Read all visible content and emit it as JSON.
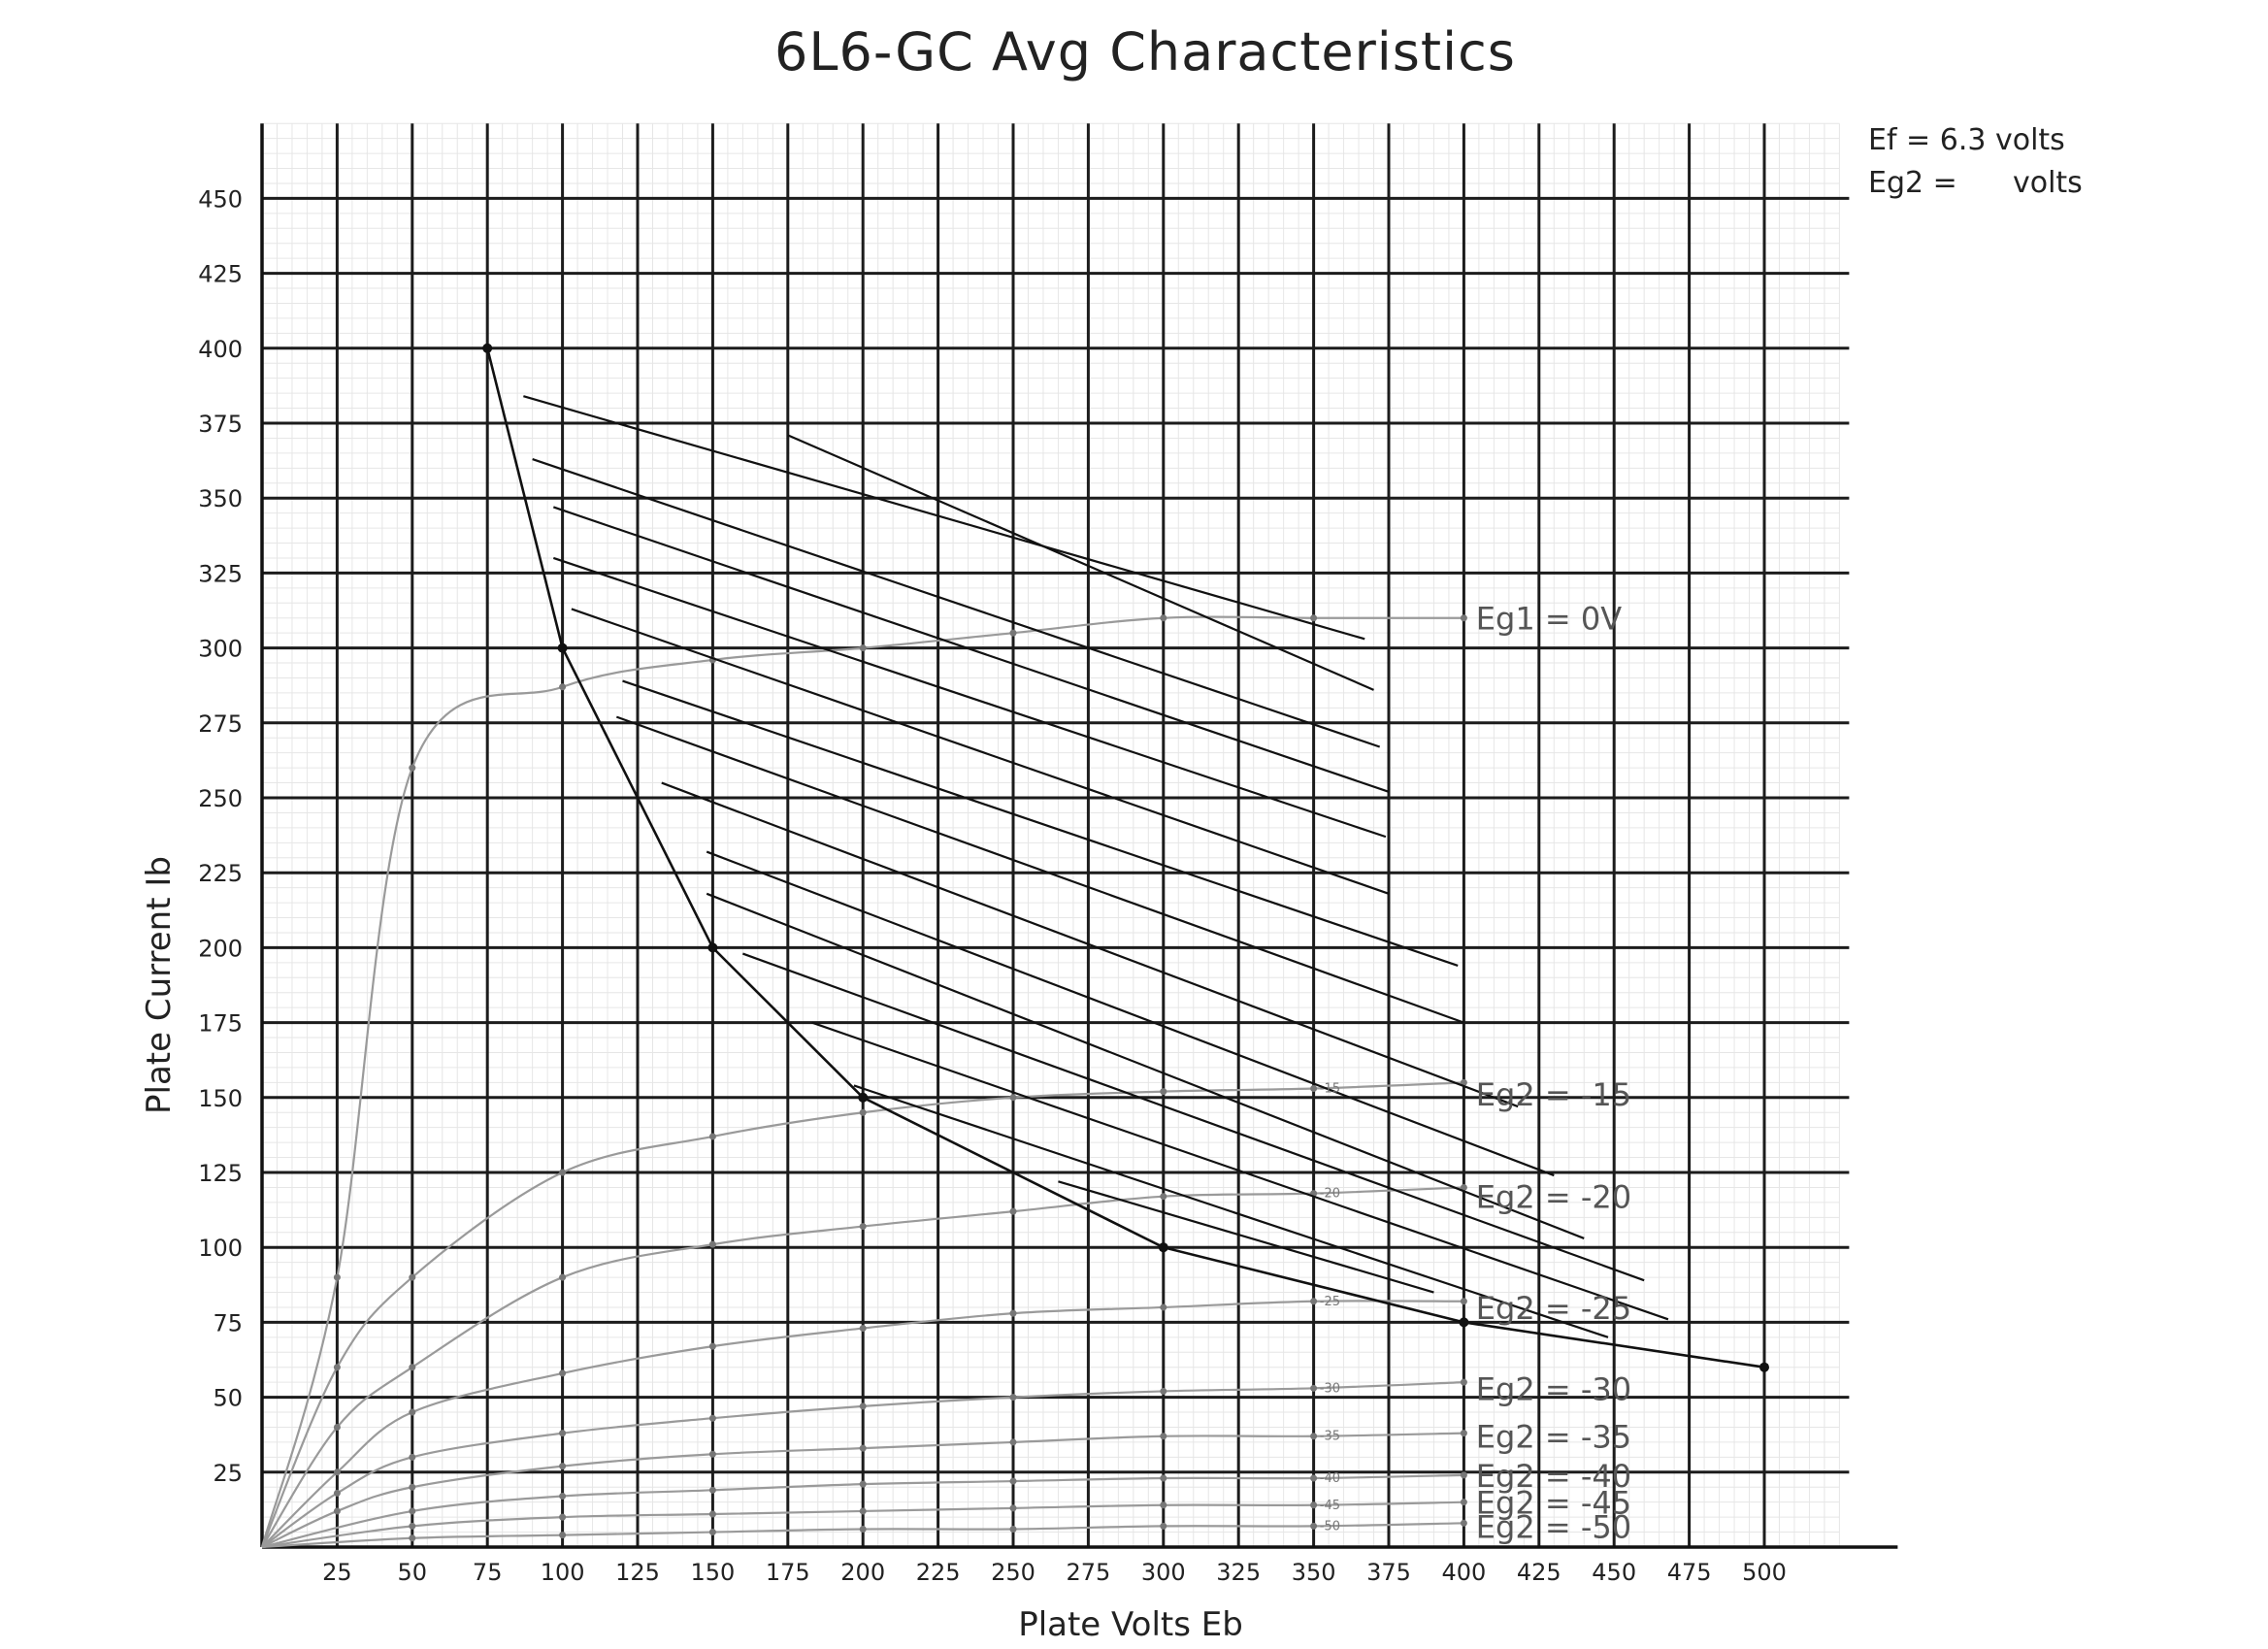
{
  "chart_data": {
    "type": "line",
    "title": "6L6-GC Avg Characteristics",
    "xlabel": "Plate Volts Eb",
    "ylabel": "Plate Current Ib",
    "xlim": [
      0,
      525
    ],
    "ylim": [
      0,
      475
    ],
    "x_ticks": [
      25,
      50,
      75,
      100,
      125,
      150,
      175,
      200,
      225,
      250,
      275,
      300,
      325,
      350,
      375,
      400,
      425,
      450,
      475,
      500
    ],
    "y_ticks": [
      25,
      50,
      75,
      100,
      125,
      150,
      175,
      200,
      225,
      250,
      275,
      300,
      325,
      350,
      375,
      400,
      425,
      450
    ],
    "x_tick_labels": [
      "25",
      "50",
      "75",
      "100",
      "125",
      "150",
      "175",
      "200",
      "225",
      "250",
      "275",
      "300",
      "325",
      "350",
      "375",
      "400",
      "425",
      "450",
      "475",
      "500"
    ],
    "y_tick_labels": [
      "25",
      "50",
      "75",
      "100",
      "125",
      "150",
      "175",
      "200",
      "225",
      "250",
      "275",
      "300",
      "325",
      "350",
      "375",
      "400",
      "425",
      "450"
    ],
    "grid": true,
    "annotations": {
      "filament": "Ef = 6.3 volts",
      "screen": "Eg2 =      volts"
    },
    "series": [
      {
        "label": "Eg1 = 0V",
        "points": [
          [
            0,
            0
          ],
          [
            25,
            90
          ],
          [
            50,
            260
          ],
          [
            100,
            287
          ],
          [
            150,
            296
          ],
          [
            200,
            300
          ],
          [
            250,
            305
          ],
          [
            300,
            310
          ],
          [
            350,
            310
          ],
          [
            400,
            310
          ]
        ]
      },
      {
        "label": "Eg2 = -15",
        "points": [
          [
            0,
            0
          ],
          [
            25,
            60
          ],
          [
            50,
            90
          ],
          [
            100,
            125
          ],
          [
            150,
            137
          ],
          [
            200,
            145
          ],
          [
            250,
            150
          ],
          [
            300,
            152
          ],
          [
            350,
            153
          ],
          [
            400,
            155
          ]
        ]
      },
      {
        "label": "Eg2 = -20",
        "points": [
          [
            0,
            0
          ],
          [
            25,
            40
          ],
          [
            50,
            60
          ],
          [
            100,
            90
          ],
          [
            150,
            101
          ],
          [
            200,
            107
          ],
          [
            250,
            112
          ],
          [
            300,
            117
          ],
          [
            350,
            118
          ],
          [
            400,
            120
          ]
        ]
      },
      {
        "label": "Eg2 = -25",
        "points": [
          [
            0,
            0
          ],
          [
            25,
            25
          ],
          [
            50,
            45
          ],
          [
            100,
            58
          ],
          [
            150,
            67
          ],
          [
            200,
            73
          ],
          [
            250,
            78
          ],
          [
            300,
            80
          ],
          [
            350,
            82
          ],
          [
            400,
            82
          ]
        ]
      },
      {
        "label": "Eg2 = -30",
        "points": [
          [
            0,
            0
          ],
          [
            25,
            18
          ],
          [
            50,
            30
          ],
          [
            100,
            38
          ],
          [
            150,
            43
          ],
          [
            200,
            47
          ],
          [
            250,
            50
          ],
          [
            300,
            52
          ],
          [
            350,
            53
          ],
          [
            400,
            55
          ]
        ]
      },
      {
        "label": "Eg2 = -35",
        "points": [
          [
            0,
            0
          ],
          [
            25,
            12
          ],
          [
            50,
            20
          ],
          [
            100,
            27
          ],
          [
            150,
            31
          ],
          [
            200,
            33
          ],
          [
            250,
            35
          ],
          [
            300,
            37
          ],
          [
            350,
            37
          ],
          [
            400,
            38
          ]
        ]
      },
      {
        "label": "Eg2 = -40",
        "points": [
          [
            0,
            0
          ],
          [
            50,
            12
          ],
          [
            100,
            17
          ],
          [
            150,
            19
          ],
          [
            200,
            21
          ],
          [
            250,
            22
          ],
          [
            300,
            23
          ],
          [
            350,
            23
          ],
          [
            400,
            24
          ]
        ]
      },
      {
        "label": "Eg2 = -45",
        "points": [
          [
            0,
            0
          ],
          [
            50,
            7
          ],
          [
            100,
            10
          ],
          [
            150,
            11
          ],
          [
            200,
            12
          ],
          [
            250,
            13
          ],
          [
            300,
            14
          ],
          [
            350,
            14
          ],
          [
            400,
            15
          ]
        ]
      },
      {
        "label": "Eg2 = -50",
        "points": [
          [
            0,
            0
          ],
          [
            50,
            3
          ],
          [
            100,
            4
          ],
          [
            150,
            5
          ],
          [
            200,
            6
          ],
          [
            250,
            6
          ],
          [
            300,
            7
          ],
          [
            350,
            7
          ],
          [
            400,
            8
          ]
        ]
      }
    ],
    "max_dissipation_curve": [
      [
        75,
        400
      ],
      [
        100,
        300
      ],
      [
        150,
        200
      ],
      [
        200,
        150
      ],
      [
        300,
        100
      ],
      [
        400,
        75
      ],
      [
        500,
        60
      ]
    ],
    "load_lines": [
      [
        [
          87,
          384
        ],
        [
          367,
          303
        ]
      ],
      [
        [
          175,
          371
        ],
        [
          370,
          286
        ]
      ],
      [
        [
          90,
          363
        ],
        [
          372,
          267
        ]
      ],
      [
        [
          97,
          347
        ],
        [
          375,
          252
        ]
      ],
      [
        [
          97,
          330
        ],
        [
          374,
          237
        ]
      ],
      [
        [
          103,
          313
        ],
        [
          375,
          218
        ]
      ],
      [
        [
          120,
          289
        ],
        [
          398,
          194
        ]
      ],
      [
        [
          118,
          277
        ],
        [
          400,
          175
        ]
      ],
      [
        [
          133,
          255
        ],
        [
          418,
          147
        ]
      ],
      [
        [
          148,
          232
        ],
        [
          430,
          124
        ]
      ],
      [
        [
          148,
          218
        ],
        [
          440,
          103
        ]
      ],
      [
        [
          160,
          198
        ],
        [
          460,
          89
        ]
      ],
      [
        [
          183,
          175
        ],
        [
          468,
          76
        ]
      ],
      [
        [
          197,
          154
        ],
        [
          448,
          70
        ]
      ],
      [
        [
          265,
          122
        ],
        [
          390,
          85
        ]
      ]
    ],
    "curve_labels": [
      "Eg1 = 0V",
      "Eg2 = -15",
      "Eg2 = -20",
      "Eg2 = -25",
      "Eg2 = -30",
      "Eg2 = -35",
      "Eg2 = -40",
      "Eg2 = -45",
      "Eg2 = -50"
    ],
    "inline_tags": [
      "-15",
      "-20",
      "-25",
      "-30",
      "-35",
      "-40",
      "-45",
      "-50"
    ]
  }
}
